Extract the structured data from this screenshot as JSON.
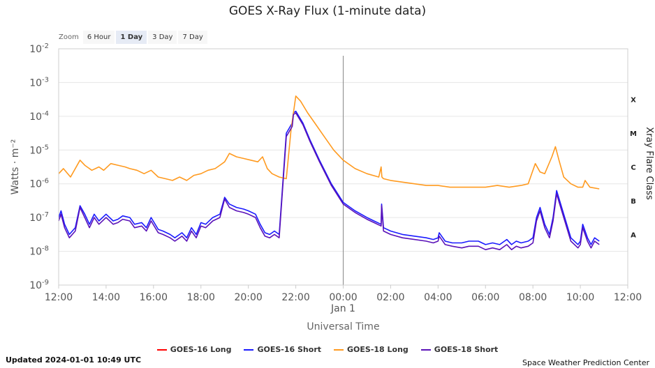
{
  "title": "GOES X-Ray Flux (1-minute data)",
  "zoom": {
    "label": "Zoom",
    "buttons": [
      "6 Hour",
      "1 Day",
      "3 Day",
      "7 Day"
    ],
    "active": "1 Day"
  },
  "footer": {
    "updated": "Updated 2024-01-01 10:49 UTC",
    "credit": "Space Weather Prediction Center"
  },
  "chart_data": {
    "type": "line",
    "title": "GOES X-Ray Flux (1-minute data)",
    "xlabel": "Universal Time",
    "ylabel": "Watts · m⁻²",
    "y2label": "Xray Flare Class",
    "yscale": "log",
    "ylim": [
      1e-09,
      0.01
    ],
    "xlim": [
      12,
      36
    ],
    "x_ticks": [
      {
        "x": 12,
        "label": "12:00"
      },
      {
        "x": 14,
        "label": "14:00"
      },
      {
        "x": 16,
        "label": "16:00"
      },
      {
        "x": 18,
        "label": "18:00"
      },
      {
        "x": 20,
        "label": "20:00"
      },
      {
        "x": 22,
        "label": "22:00"
      },
      {
        "x": 24,
        "label": "00:00",
        "sublabel": "Jan 1"
      },
      {
        "x": 26,
        "label": "02:00"
      },
      {
        "x": 28,
        "label": "04:00"
      },
      {
        "x": 30,
        "label": "06:00"
      },
      {
        "x": 32,
        "label": "08:00"
      },
      {
        "x": 34,
        "label": "10:00"
      },
      {
        "x": 36,
        "label": "12:00"
      }
    ],
    "y_ticks": [
      {
        "exp": -2,
        "base": "10",
        "sup": "-2"
      },
      {
        "exp": -3,
        "base": "10",
        "sup": "-3"
      },
      {
        "exp": -4,
        "base": "10",
        "sup": "-4"
      },
      {
        "exp": -5,
        "base": "10",
        "sup": "-5"
      },
      {
        "exp": -6,
        "base": "10",
        "sup": "-6"
      },
      {
        "exp": -7,
        "base": "10",
        "sup": "-7"
      },
      {
        "exp": -8,
        "base": "10",
        "sup": "-8"
      },
      {
        "exp": -9,
        "base": "10",
        "sup": "-9"
      }
    ],
    "flare_classes": [
      {
        "label": "X",
        "log": -3.5
      },
      {
        "label": "M",
        "log": -4.5
      },
      {
        "label": "C",
        "log": -5.5
      },
      {
        "label": "B",
        "log": -6.5
      },
      {
        "label": "A",
        "log": -7.5
      }
    ],
    "day_divider": 24,
    "legend_position": "bottom",
    "grid": true,
    "series": [
      {
        "name": "GOES-16 Long",
        "color": "#ff0000",
        "log10": true,
        "x": [],
        "y": []
      },
      {
        "name": "GOES-16 Short",
        "color": "#1a1aff",
        "log10": true,
        "x": [
          12.0,
          12.1,
          12.25,
          12.45,
          12.7,
          12.9,
          13.1,
          13.3,
          13.5,
          13.7,
          14.0,
          14.3,
          14.5,
          14.7,
          15.0,
          15.2,
          15.5,
          15.7,
          15.9,
          16.2,
          16.4,
          16.7,
          16.9,
          17.2,
          17.4,
          17.6,
          17.8,
          18.0,
          18.2,
          18.5,
          18.8,
          19.0,
          19.2,
          19.5,
          19.8,
          20.0,
          20.3,
          20.5,
          20.7,
          20.9,
          21.1,
          21.3,
          21.6,
          21.85,
          21.9,
          22.0,
          22.3,
          22.6,
          23.0,
          23.5,
          24.0,
          24.5,
          25.0,
          25.3,
          25.6,
          25.62,
          25.7,
          26.0,
          26.5,
          27.0,
          27.5,
          27.8,
          28.0,
          28.05,
          28.3,
          28.6,
          29.0,
          29.3,
          29.7,
          30.0,
          30.3,
          30.6,
          30.9,
          31.1,
          31.3,
          31.5,
          31.8,
          32.0,
          32.15,
          32.3,
          32.5,
          32.7,
          32.85,
          33.0,
          33.3,
          33.6,
          33.9,
          34.0,
          34.1,
          34.3,
          34.45,
          34.6,
          34.8
        ],
        "y": [
          -7.0,
          -6.8,
          -7.2,
          -7.5,
          -7.3,
          -6.65,
          -6.9,
          -7.2,
          -6.9,
          -7.1,
          -6.9,
          -7.1,
          -7.05,
          -6.95,
          -7.0,
          -7.2,
          -7.15,
          -7.3,
          -7.0,
          -7.35,
          -7.4,
          -7.5,
          -7.6,
          -7.45,
          -7.6,
          -7.3,
          -7.5,
          -7.15,
          -7.2,
          -7.0,
          -6.9,
          -6.4,
          -6.6,
          -6.7,
          -6.75,
          -6.8,
          -6.9,
          -7.2,
          -7.45,
          -7.5,
          -7.4,
          -7.5,
          -4.5,
          -4.2,
          -3.9,
          -3.85,
          -4.2,
          -4.7,
          -5.3,
          -6.0,
          -6.55,
          -6.8,
          -7.0,
          -7.1,
          -7.2,
          -6.6,
          -7.3,
          -7.4,
          -7.5,
          -7.55,
          -7.6,
          -7.65,
          -7.6,
          -7.45,
          -7.7,
          -7.75,
          -7.75,
          -7.7,
          -7.7,
          -7.8,
          -7.75,
          -7.8,
          -7.65,
          -7.8,
          -7.7,
          -7.75,
          -7.7,
          -7.6,
          -7.0,
          -6.7,
          -7.2,
          -7.5,
          -7.0,
          -6.2,
          -6.9,
          -7.6,
          -7.8,
          -7.7,
          -7.2,
          -7.6,
          -7.8,
          -7.6,
          -7.7
        ]
      },
      {
        "name": "GOES-18 Long",
        "color": "#ff9a1f",
        "log10": true,
        "x": [
          12.0,
          12.2,
          12.5,
          12.9,
          13.1,
          13.4,
          13.7,
          13.9,
          14.2,
          14.5,
          14.8,
          15.0,
          15.3,
          15.6,
          15.9,
          16.2,
          16.5,
          16.8,
          17.1,
          17.4,
          17.7,
          18.0,
          18.3,
          18.6,
          18.8,
          19.0,
          19.2,
          19.5,
          19.8,
          20.1,
          20.4,
          20.6,
          20.8,
          21.0,
          21.3,
          21.6,
          21.8,
          22.0,
          22.2,
          22.5,
          22.8,
          23.2,
          23.6,
          24.0,
          24.5,
          25.0,
          25.5,
          25.6,
          25.63,
          25.7,
          26.0,
          26.5,
          27.0,
          27.5,
          28.0,
          28.5,
          29.0,
          29.5,
          30.0,
          30.5,
          31.0,
          31.5,
          31.8,
          32.0,
          32.1,
          32.3,
          32.5,
          32.8,
          32.95,
          33.1,
          33.3,
          33.6,
          33.9,
          34.1,
          34.2,
          34.4,
          34.8
        ],
        "y": [
          -5.7,
          -5.55,
          -5.8,
          -5.3,
          -5.45,
          -5.6,
          -5.5,
          -5.6,
          -5.4,
          -5.45,
          -5.5,
          -5.55,
          -5.6,
          -5.7,
          -5.6,
          -5.8,
          -5.85,
          -5.9,
          -5.8,
          -5.9,
          -5.75,
          -5.7,
          -5.6,
          -5.55,
          -5.45,
          -5.35,
          -5.1,
          -5.2,
          -5.25,
          -5.3,
          -5.35,
          -5.2,
          -5.55,
          -5.7,
          -5.8,
          -5.85,
          -4.4,
          -3.4,
          -3.55,
          -3.9,
          -4.2,
          -4.6,
          -5.0,
          -5.3,
          -5.55,
          -5.7,
          -5.8,
          -5.5,
          -5.8,
          -5.85,
          -5.9,
          -5.95,
          -6.0,
          -6.05,
          -6.05,
          -6.1,
          -6.1,
          -6.1,
          -6.1,
          -6.05,
          -6.1,
          -6.05,
          -6.0,
          -5.6,
          -5.4,
          -5.65,
          -5.7,
          -5.2,
          -4.9,
          -5.3,
          -5.8,
          -6.0,
          -6.1,
          -6.1,
          -5.9,
          -6.1,
          -6.15
        ]
      },
      {
        "name": "GOES-18 Short",
        "color": "#5a12b8",
        "log10": true,
        "x": [
          12.0,
          12.1,
          12.25,
          12.45,
          12.7,
          12.9,
          13.1,
          13.3,
          13.5,
          13.7,
          14.0,
          14.3,
          14.5,
          14.7,
          15.0,
          15.2,
          15.5,
          15.7,
          15.9,
          16.2,
          16.4,
          16.7,
          16.9,
          17.2,
          17.4,
          17.6,
          17.8,
          18.0,
          18.2,
          18.5,
          18.8,
          19.0,
          19.2,
          19.5,
          19.8,
          20.0,
          20.3,
          20.5,
          20.7,
          20.9,
          21.1,
          21.3,
          21.6,
          21.85,
          21.9,
          22.0,
          22.3,
          22.6,
          23.0,
          23.5,
          24.0,
          24.5,
          25.0,
          25.3,
          25.6,
          25.62,
          25.7,
          26.0,
          26.5,
          27.0,
          27.5,
          27.8,
          28.0,
          28.05,
          28.3,
          28.6,
          29.0,
          29.3,
          29.7,
          30.0,
          30.3,
          30.6,
          30.9,
          31.1,
          31.3,
          31.5,
          31.8,
          32.0,
          32.15,
          32.3,
          32.5,
          32.7,
          32.85,
          33.0,
          33.3,
          33.6,
          33.9,
          34.0,
          34.1,
          34.3,
          34.45,
          34.6,
          34.8
        ],
        "y": [
          -7.1,
          -6.9,
          -7.3,
          -7.6,
          -7.4,
          -6.7,
          -7.0,
          -7.3,
          -7.0,
          -7.2,
          -7.0,
          -7.2,
          -7.15,
          -7.05,
          -7.1,
          -7.3,
          -7.25,
          -7.4,
          -7.1,
          -7.45,
          -7.5,
          -7.6,
          -7.7,
          -7.55,
          -7.7,
          -7.4,
          -7.6,
          -7.25,
          -7.3,
          -7.1,
          -7.0,
          -6.45,
          -6.7,
          -6.8,
          -6.85,
          -6.9,
          -7.0,
          -7.3,
          -7.55,
          -7.6,
          -7.5,
          -7.6,
          -4.6,
          -4.3,
          -3.95,
          -3.9,
          -4.25,
          -4.75,
          -5.35,
          -6.05,
          -6.6,
          -6.85,
          -7.05,
          -7.15,
          -7.25,
          -6.65,
          -7.4,
          -7.5,
          -7.6,
          -7.65,
          -7.7,
          -7.75,
          -7.7,
          -7.55,
          -7.8,
          -7.85,
          -7.9,
          -7.85,
          -7.85,
          -7.95,
          -7.9,
          -7.95,
          -7.8,
          -7.95,
          -7.85,
          -7.9,
          -7.85,
          -7.75,
          -7.1,
          -6.8,
          -7.3,
          -7.6,
          -7.1,
          -6.3,
          -7.0,
          -7.7,
          -7.9,
          -7.8,
          -7.3,
          -7.7,
          -7.9,
          -7.7,
          -7.8
        ]
      }
    ]
  }
}
